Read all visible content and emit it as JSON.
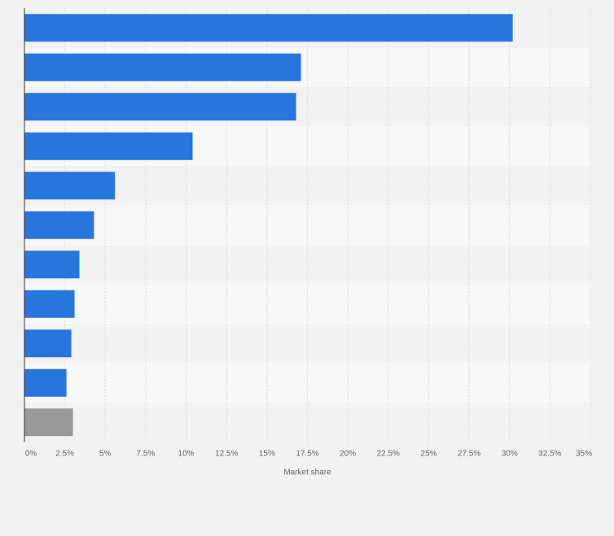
{
  "chart_data": {
    "type": "bar",
    "orientation": "horizontal",
    "title": "",
    "xlabel": "Market share",
    "ylabel": "",
    "xlim": [
      0,
      35
    ],
    "grid": true,
    "legend": "none",
    "categories": [
      "",
      "",
      "",
      "",
      "",
      "",
      "",
      "",
      "",
      "",
      ""
    ],
    "values": [
      30.2,
      17.1,
      16.8,
      10.4,
      5.6,
      4.3,
      3.4,
      3.1,
      2.9,
      2.6,
      3.0
    ],
    "tick_labels": [
      "0%",
      "2.5%",
      "5%",
      "7.5%",
      "10%",
      "12.5%",
      "15%",
      "17.5%",
      "20%",
      "22.5%",
      "25%",
      "27.5%",
      "30%",
      "32.5%",
      "35%"
    ],
    "colors": {
      "bar": "#2876dd",
      "last_bar": "#999999",
      "grid": "#dddddd",
      "axis": "#333333",
      "band_light": "#f8f8f8",
      "band_dark": "#f2f2f2"
    }
  }
}
